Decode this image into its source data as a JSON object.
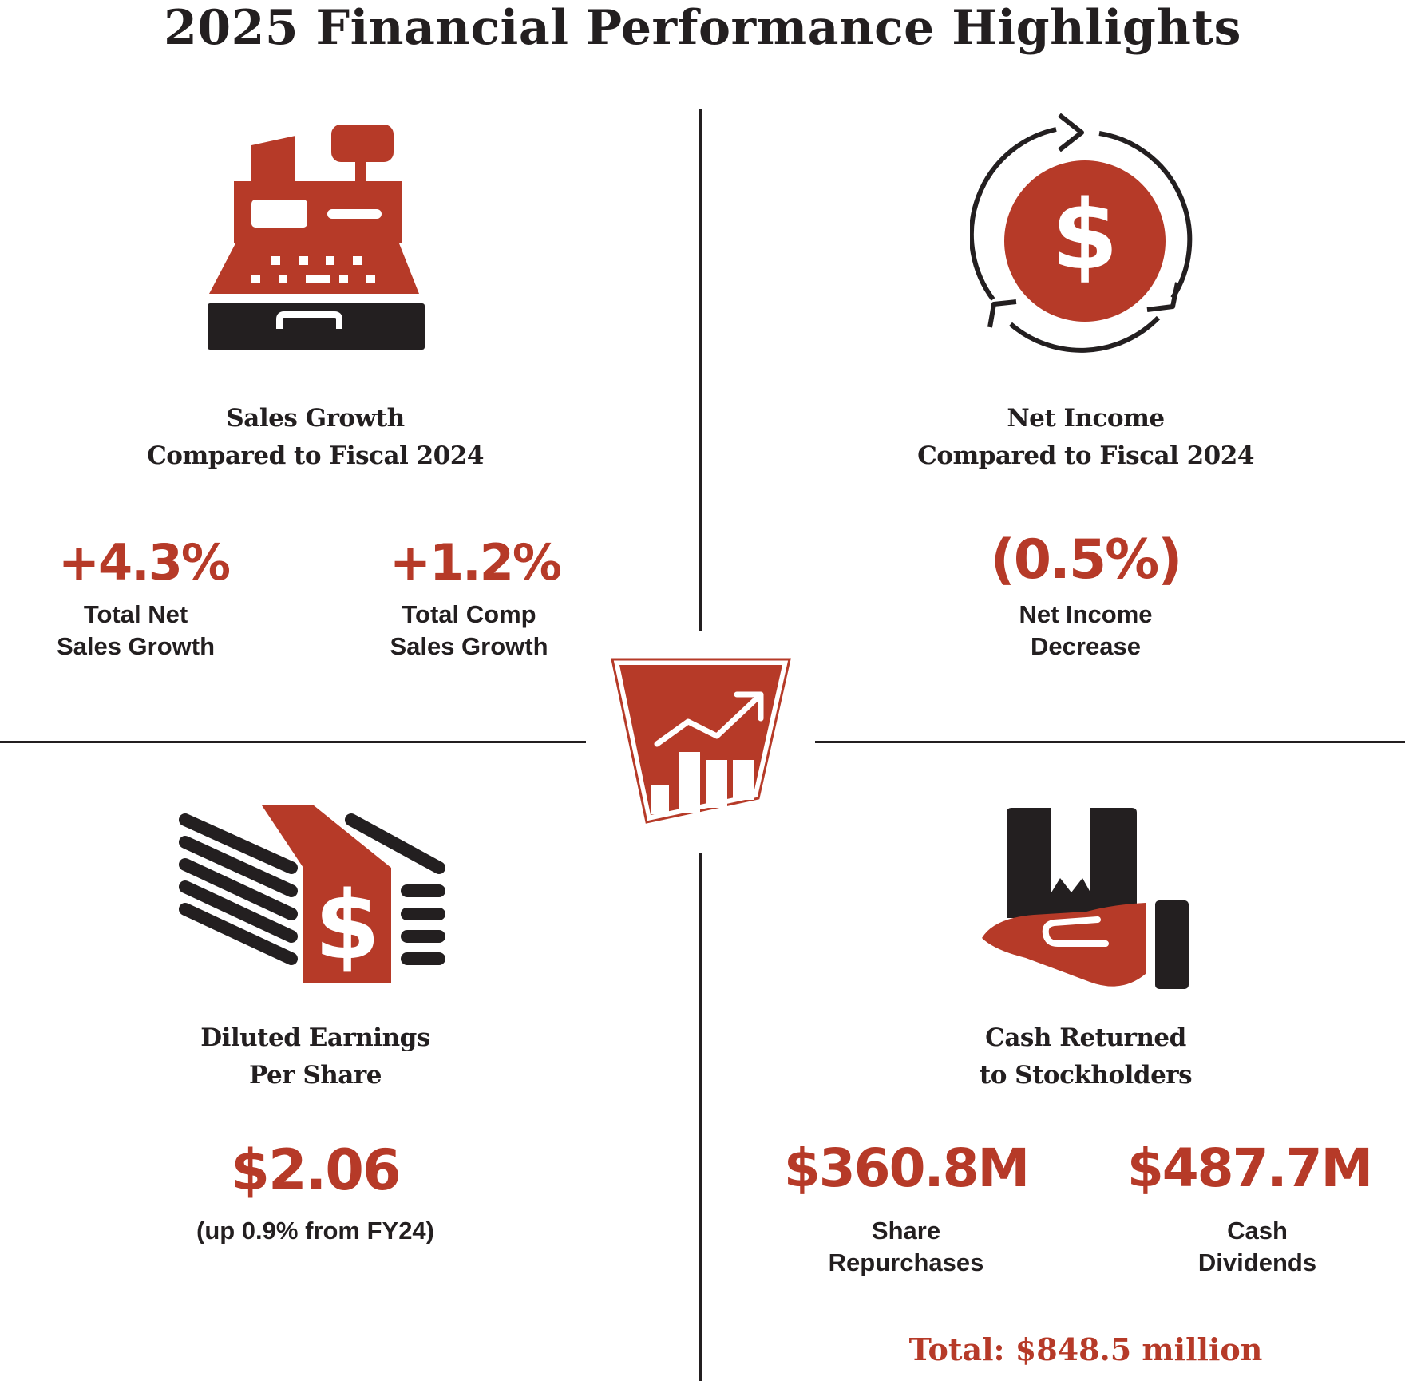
{
  "title": "2025 Financial Performance Highlights",
  "colors": {
    "accent": "#b63a28",
    "dark": "#231f20",
    "background": "#ffffff"
  },
  "quadrants": {
    "sales": {
      "icon": "cash-register-icon",
      "heading_line1": "Sales Growth",
      "heading_line2": "Compared to Fiscal 2024",
      "metrics": [
        {
          "value": "+4.3%",
          "label_line1": "Total Net",
          "label_line2": "Sales Growth"
        },
        {
          "value": "+1.2%",
          "label_line1": "Total Comp",
          "label_line2": "Sales Growth"
        }
      ]
    },
    "net_income": {
      "icon": "dollar-cycle-icon",
      "heading_line1": "Net Income",
      "heading_line2": "Compared to Fiscal 2024",
      "value": "(0.5%)",
      "label_line1": "Net Income",
      "label_line2": "Decrease"
    },
    "eps": {
      "icon": "money-stack-icon",
      "heading_line1": "Diluted Earnings",
      "heading_line2": "Per Share",
      "value": "$2.06",
      "note": "(up 0.9% from FY24)"
    },
    "cash_returned": {
      "icon": "hand-holding-box-icon",
      "heading_line1": "Cash Returned",
      "heading_line2": "to Stockholders",
      "metrics": [
        {
          "value": "$360.8M",
          "label_line1": "Share",
          "label_line2": "Repurchases"
        },
        {
          "value": "$487.7M",
          "label_line1": "Cash",
          "label_line2": "Dividends"
        }
      ],
      "total": "Total: $848.5 million"
    }
  },
  "center_badge": {
    "icon": "growth-chart-badge-icon"
  }
}
